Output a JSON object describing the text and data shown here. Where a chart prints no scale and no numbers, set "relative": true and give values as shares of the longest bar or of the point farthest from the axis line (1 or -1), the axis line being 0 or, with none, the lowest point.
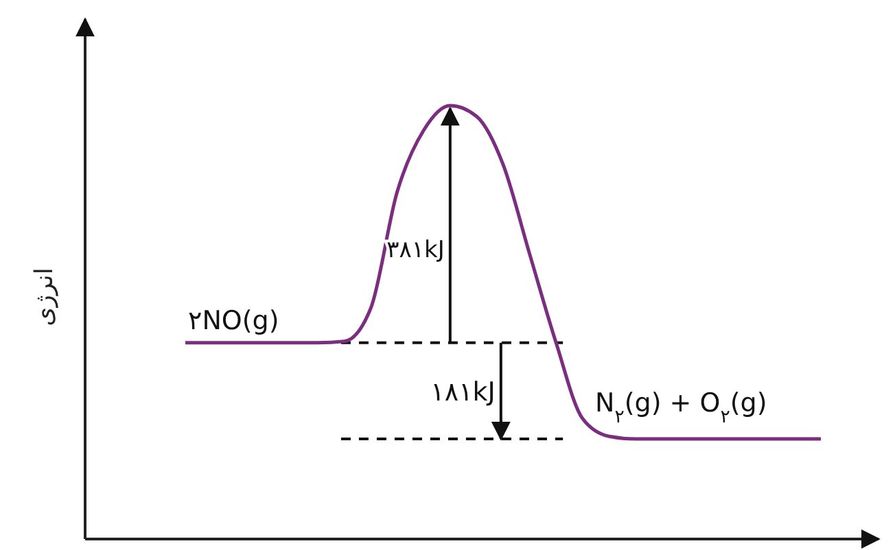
{
  "chart_data": {
    "type": "line",
    "relative": true,
    "ylabel": "انرژی",
    "categories": [
      null,
      null,
      null,
      null,
      null,
      null,
      null,
      null,
      null,
      null,
      null,
      null,
      null,
      null,
      null,
      null,
      null,
      null,
      null,
      null,
      null,
      null,
      null,
      null,
      null
    ],
    "series": [
      {
        "color": "#7b2d80",
        "values": [
          0.453,
          0.453,
          0.453,
          0.453,
          0.453,
          0.453,
          0.456,
          0.532,
          0.801,
          0.943,
          1,
          0.975,
          0.864,
          0.658,
          0.453,
          0.278,
          0.237,
          0.231,
          0.231,
          0.231,
          0.231,
          0.231,
          0.231,
          0.231,
          0.231
        ]
      }
    ],
    "annotations": [
      "۲NO(g)",
      "۳۸۱kJ",
      "۱۸۱kJ",
      "N$_{۲}$(g) + O$_{۲}$(g)"
    ],
    "marker": "none",
    "line_style": "solid"
  }
}
